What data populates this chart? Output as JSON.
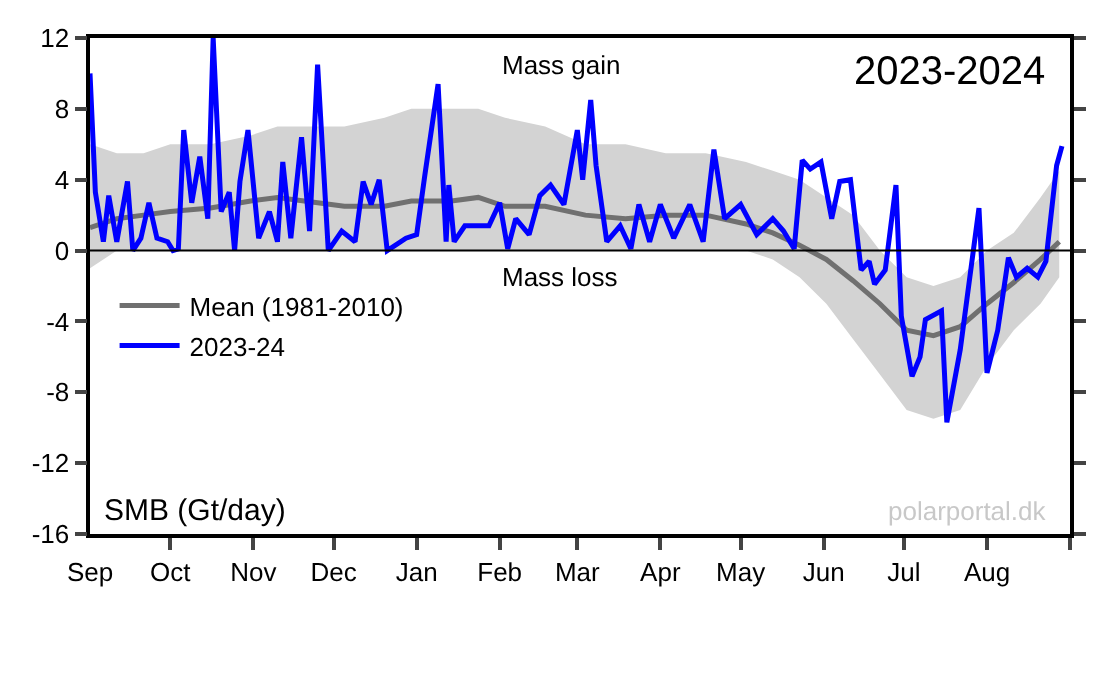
{
  "chart_data": {
    "type": "line",
    "title": "2023-2024",
    "ylabel": "SMB (Gt/day)",
    "annotations": [
      "Mass gain",
      "Mass loss",
      "polarportal.dk"
    ],
    "xlim": [
      "2023-09-01",
      "2024-09-01"
    ],
    "ylim": [
      -16,
      12
    ],
    "yticks": [
      -16,
      -12,
      -8,
      -4,
      0,
      4,
      8,
      12
    ],
    "xticks": [
      {
        "value": "2023-09-01",
        "label": "Sep"
      },
      {
        "value": "2023-10-01",
        "label": "Oct"
      },
      {
        "value": "2023-11-01",
        "label": "Nov"
      },
      {
        "value": "2023-12-01",
        "label": "Dec"
      },
      {
        "value": "2024-01-01",
        "label": "Jan"
      },
      {
        "value": "2024-02-01",
        "label": "Feb"
      },
      {
        "value": "2024-03-01",
        "label": "Mar"
      },
      {
        "value": "2024-04-01",
        "label": "Apr"
      },
      {
        "value": "2024-05-01",
        "label": "May"
      },
      {
        "value": "2024-06-01",
        "label": "Jun"
      },
      {
        "value": "2024-07-01",
        "label": "Jul"
      },
      {
        "value": "2024-08-01",
        "label": "Aug"
      },
      {
        "value": "2024-09-01",
        "label": null
      }
    ],
    "ref_lines": [
      {
        "axis": "y",
        "value": 0,
        "color": "#000000"
      }
    ],
    "legend": "left",
    "marker": "none",
    "line_style": "solid",
    "series": [
      {
        "name": "Mean (1981-2010)",
        "color": "#707070",
        "x": [
          "2023-09-01",
          "2023-09-11",
          "2023-09-21",
          "2023-10-01",
          "2023-10-16",
          "2023-10-31",
          "2023-11-10",
          "2023-11-20",
          "2023-12-05",
          "2023-12-20",
          "2023-12-30",
          "2024-01-14",
          "2024-01-24",
          "2024-02-03",
          "2024-02-18",
          "2024-03-04",
          "2024-03-19",
          "2024-04-03",
          "2024-04-18",
          "2024-05-03",
          "2024-05-13",
          "2024-05-23",
          "2024-06-02",
          "2024-06-12",
          "2024-06-22",
          "2024-07-02",
          "2024-07-12",
          "2024-07-22",
          "2024-08-01",
          "2024-08-11",
          "2024-08-21",
          "2024-08-28"
        ],
        "values": [
          1.3,
          1.8,
          2.0,
          2.2,
          2.4,
          2.8,
          3.0,
          2.8,
          2.5,
          2.5,
          2.8,
          2.8,
          3.0,
          2.5,
          2.5,
          2.0,
          1.8,
          2.0,
          2.0,
          1.5,
          1.0,
          0.3,
          -0.5,
          -1.7,
          -3.0,
          -4.5,
          -4.8,
          -4.3,
          -3.0,
          -1.8,
          -0.5,
          0.5
        ],
        "upper": [
          6,
          5.5,
          5.5,
          6,
          6,
          6.5,
          7,
          7,
          7,
          7.5,
          8,
          8,
          8,
          7.5,
          7,
          6,
          6,
          5.5,
          5.5,
          5,
          4.5,
          4,
          3,
          2,
          0,
          -1.5,
          -2,
          -1.5,
          0,
          1,
          3,
          4.5
        ],
        "lower": [
          -1,
          0,
          0,
          0,
          0,
          0,
          0,
          0,
          0,
          0,
          0,
          0,
          0,
          0,
          0,
          0,
          0,
          0,
          0,
          0,
          -0.5,
          -1.5,
          -3,
          -5,
          -7,
          -9,
          -9.5,
          -9,
          -6.5,
          -4.5,
          -3,
          -1.5
        ]
      },
      {
        "name": "2023-24",
        "color": "#0000ff",
        "x": [
          "2023-09-01",
          "2023-09-03",
          "2023-09-06",
          "2023-09-08",
          "2023-09-11",
          "2023-09-15",
          "2023-09-17",
          "2023-09-20",
          "2023-09-23",
          "2023-09-26",
          "2023-09-30",
          "2023-10-02",
          "2023-10-04",
          "2023-10-06",
          "2023-10-09",
          "2023-10-12",
          "2023-10-15",
          "2023-10-17",
          "2023-10-20",
          "2023-10-23",
          "2023-10-25",
          "2023-10-27",
          "2023-10-30",
          "2023-11-03",
          "2023-11-07",
          "2023-11-10",
          "2023-11-12",
          "2023-11-15",
          "2023-11-19",
          "2023-11-22",
          "2023-11-25",
          "2023-11-29",
          "2023-12-04",
          "2023-12-09",
          "2023-12-12",
          "2023-12-15",
          "2023-12-18",
          "2023-12-21",
          "2023-12-28",
          "2024-01-01",
          "2024-01-04",
          "2024-01-09",
          "2024-01-12",
          "2024-01-13",
          "2024-01-15",
          "2024-01-19",
          "2024-01-24",
          "2024-01-28",
          "2024-02-01",
          "2024-02-04",
          "2024-02-07",
          "2024-02-12",
          "2024-02-16",
          "2024-02-20",
          "2024-02-25",
          "2024-03-01",
          "2024-03-03",
          "2024-03-06",
          "2024-03-08",
          "2024-03-12",
          "2024-03-17",
          "2024-03-21",
          "2024-03-24",
          "2024-03-28",
          "2024-04-01",
          "2024-04-06",
          "2024-04-12",
          "2024-04-17",
          "2024-04-21",
          "2024-04-25",
          "2024-05-01",
          "2024-05-07",
          "2024-05-13",
          "2024-05-17",
          "2024-05-21",
          "2024-05-24",
          "2024-05-27",
          "2024-05-31",
          "2024-06-04",
          "2024-06-07",
          "2024-06-11",
          "2024-06-15",
          "2024-06-18",
          "2024-06-20",
          "2024-06-24",
          "2024-06-28",
          "2024-06-30",
          "2024-07-04",
          "2024-07-07",
          "2024-07-09",
          "2024-07-15",
          "2024-07-17",
          "2024-07-22",
          "2024-07-29",
          "2024-08-01",
          "2024-08-05",
          "2024-08-09",
          "2024-08-12",
          "2024-08-16",
          "2024-08-20",
          "2024-08-23",
          "2024-08-27",
          "2024-08-29"
        ],
        "values": [
          10,
          3.3,
          0.5,
          3.1,
          0.5,
          3.9,
          0,
          0.7,
          2.7,
          0.7,
          0.5,
          0,
          0.1,
          6.8,
          2.7,
          5.3,
          1.8,
          12,
          2.2,
          3.3,
          0,
          3.9,
          6.8,
          0.7,
          2.2,
          0.5,
          5,
          0.7,
          6.4,
          1.1,
          10.5,
          0,
          1.1,
          0.5,
          3.9,
          2.6,
          4,
          0,
          0.7,
          0.9,
          4.2,
          9.4,
          0.5,
          3.7,
          0.5,
          1.4,
          1.4,
          1.4,
          2.7,
          0.1,
          1.8,
          0.9,
          3.1,
          3.7,
          2.6,
          6.8,
          4,
          8.5,
          4.8,
          0.5,
          1.4,
          0.1,
          2.6,
          0.5,
          2.6,
          0.7,
          2.6,
          0.5,
          5.7,
          1.8,
          2.6,
          0.9,
          1.8,
          1.1,
          0.1,
          5.1,
          4.6,
          5,
          1.8,
          3.9,
          4,
          -1.1,
          -0.6,
          -1.9,
          -1.1,
          3.7,
          -3.7,
          -7.1,
          -6,
          -3.9,
          -3.4,
          -9.7,
          -5.6,
          2.4,
          -6.9,
          -4.5,
          -0.4,
          -1.5,
          -1,
          -1.5,
          -0.6,
          4.8,
          5.9
        ]
      }
    ]
  }
}
